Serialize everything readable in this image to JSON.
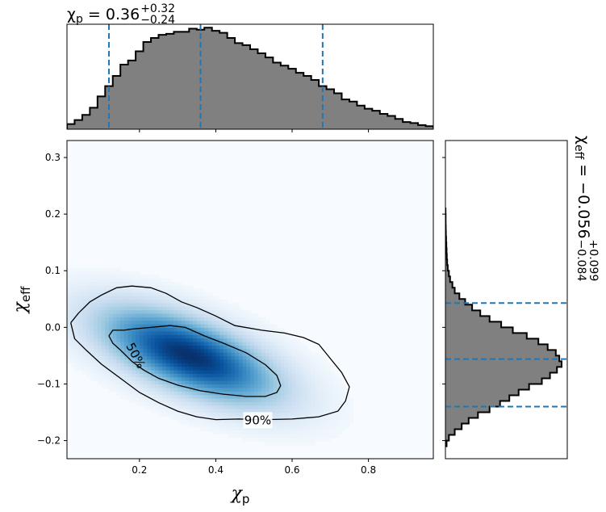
{
  "chart_data": [
    {
      "type": "histogram",
      "panel": "top-marginal",
      "title_prefix": "χ",
      "title_sub": "p",
      "title_eq": " = 0.36",
      "title_upper": "+0.32",
      "title_lower": "−0.24",
      "xlim": [
        0.01,
        0.97
      ],
      "bins": {
        "start": 0.01,
        "width": 0.02,
        "counts": [
          0.05,
          0.09,
          0.14,
          0.21,
          0.32,
          0.42,
          0.52,
          0.63,
          0.67,
          0.76,
          0.85,
          0.89,
          0.92,
          0.93,
          0.95,
          0.95,
          0.98,
          0.97,
          0.99,
          0.96,
          0.94,
          0.89,
          0.84,
          0.82,
          0.78,
          0.74,
          0.7,
          0.65,
          0.62,
          0.59,
          0.55,
          0.52,
          0.48,
          0.42,
          0.39,
          0.35,
          0.29,
          0.27,
          0.23,
          0.2,
          0.18,
          0.15,
          0.13,
          0.1,
          0.07,
          0.06,
          0.04,
          0.03,
          0.02,
          0.0
        ]
      },
      "quantile_lines": [
        0.12,
        0.36,
        0.68
      ],
      "color_fill": "#808080",
      "color_edge": "#000000",
      "color_lines": "#1f77b4"
    },
    {
      "type": "heatmap",
      "panel": "joint",
      "xlabel_main": "χ",
      "xlabel_sub": "p",
      "ylabel_main": "χ",
      "ylabel_sub": "eff",
      "xlim": [
        0.01,
        0.97
      ],
      "ylim": [
        -0.232,
        0.33
      ],
      "xticks": [
        0.2,
        0.4,
        0.6,
        0.8
      ],
      "xtick_labels": [
        "0.2",
        "0.4",
        "0.6",
        "0.8"
      ],
      "yticks": [
        -0.2,
        -0.1,
        0.0,
        0.1,
        0.2,
        0.3
      ],
      "ytick_labels": [
        "−0.2",
        "−0.1",
        "0.0",
        "0.1",
        "0.2",
        "0.3"
      ],
      "density_peak": {
        "x": 0.33,
        "y": -0.05
      },
      "colormap": "Blues",
      "contours": [
        {
          "label": "50%",
          "label_pos": [
            0.19,
            -0.05
          ],
          "points": [
            [
              0.16,
              -0.005
            ],
            [
              0.18,
              -0.003
            ],
            [
              0.23,
              0.0
            ],
            [
              0.28,
              0.003
            ],
            [
              0.32,
              0.0
            ],
            [
              0.37,
              -0.015
            ],
            [
              0.42,
              -0.028
            ],
            [
              0.48,
              -0.045
            ],
            [
              0.53,
              -0.066
            ],
            [
              0.56,
              -0.085
            ],
            [
              0.57,
              -0.103
            ],
            [
              0.56,
              -0.115
            ],
            [
              0.53,
              -0.122
            ],
            [
              0.48,
              -0.122
            ],
            [
              0.42,
              -0.118
            ],
            [
              0.36,
              -0.112
            ],
            [
              0.3,
              -0.102
            ],
            [
              0.25,
              -0.09
            ],
            [
              0.21,
              -0.075
            ],
            [
              0.18,
              -0.06
            ],
            [
              0.15,
              -0.04
            ],
            [
              0.13,
              -0.028
            ],
            [
              0.12,
              -0.015
            ],
            [
              0.13,
              -0.005
            ],
            [
              0.16,
              -0.005
            ]
          ]
        },
        {
          "label": "90%",
          "label_pos": [
            0.51,
            -0.164
          ],
          "points": [
            [
              0.02,
              0.008
            ],
            [
              0.04,
              0.025
            ],
            [
              0.07,
              0.045
            ],
            [
              0.1,
              0.057
            ],
            [
              0.14,
              0.07
            ],
            [
              0.18,
              0.073
            ],
            [
              0.23,
              0.07
            ],
            [
              0.27,
              0.06
            ],
            [
              0.31,
              0.045
            ],
            [
              0.35,
              0.035
            ],
            [
              0.4,
              0.02
            ],
            [
              0.45,
              0.003
            ],
            [
              0.52,
              -0.005
            ],
            [
              0.58,
              -0.01
            ],
            [
              0.63,
              -0.018
            ],
            [
              0.67,
              -0.03
            ],
            [
              0.7,
              -0.055
            ],
            [
              0.73,
              -0.08
            ],
            [
              0.75,
              -0.105
            ],
            [
              0.74,
              -0.13
            ],
            [
              0.72,
              -0.148
            ],
            [
              0.67,
              -0.158
            ],
            [
              0.6,
              -0.162
            ],
            [
              0.53,
              -0.163
            ],
            [
              0.46,
              -0.162
            ],
            [
              0.4,
              -0.163
            ],
            [
              0.35,
              -0.158
            ],
            [
              0.3,
              -0.148
            ],
            [
              0.25,
              -0.133
            ],
            [
              0.2,
              -0.115
            ],
            [
              0.15,
              -0.09
            ],
            [
              0.1,
              -0.065
            ],
            [
              0.06,
              -0.04
            ],
            [
              0.03,
              -0.02
            ],
            [
              0.02,
              0.008
            ]
          ]
        }
      ]
    },
    {
      "type": "histogram",
      "panel": "right-marginal",
      "orientation": "horizontal",
      "title_prefix": "χ",
      "title_sub": "eff",
      "title_eq": " = −0.056",
      "title_upper": "+0.099",
      "title_lower": "−0.084",
      "ylim": [
        -0.232,
        0.33
      ],
      "bins": {
        "start": -0.21,
        "width": 0.01,
        "counts": [
          0.01,
          0.03,
          0.08,
          0.14,
          0.2,
          0.28,
          0.38,
          0.47,
          0.55,
          0.63,
          0.72,
          0.83,
          0.9,
          0.96,
          1.0,
          0.98,
          0.95,
          0.88,
          0.8,
          0.7,
          0.58,
          0.48,
          0.38,
          0.3,
          0.23,
          0.17,
          0.12,
          0.08,
          0.06,
          0.04,
          0.03,
          0.02,
          0.015,
          0.012,
          0.01,
          0.008,
          0.006,
          0.004,
          0.003,
          0.002,
          0.002,
          0.001
        ]
      },
      "quantile_lines": [
        -0.14,
        -0.056,
        0.043
      ],
      "color_fill": "#808080",
      "color_edge": "#000000",
      "color_lines": "#1f77b4"
    }
  ]
}
